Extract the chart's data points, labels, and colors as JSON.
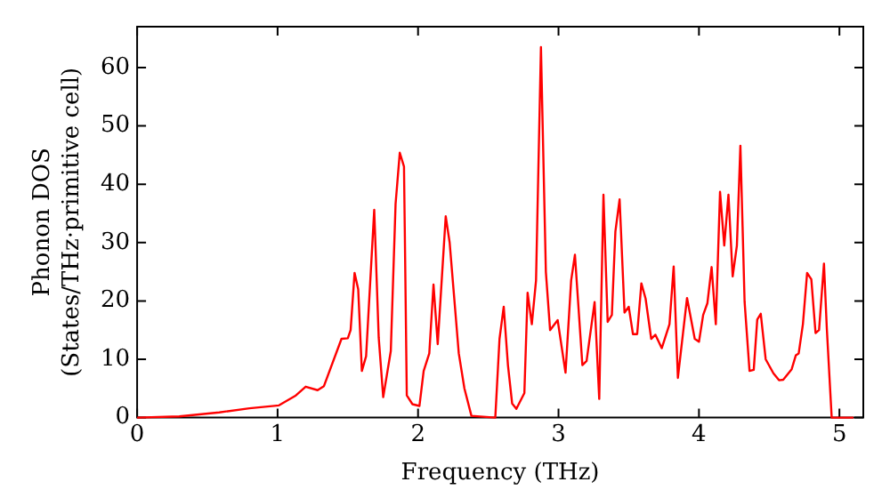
{
  "chart_data": {
    "type": "line",
    "xlabel": "Frequency (THz)",
    "ylabel": "Phonon DOS\n(States/THz·primitive cell)",
    "x": [
      0,
      0.3,
      0.585,
      0.8,
      1.01,
      1.13,
      1.2,
      1.285,
      1.33,
      1.455,
      1.5,
      1.52,
      1.548,
      1.574,
      1.6,
      1.63,
      1.688,
      1.72,
      1.752,
      1.806,
      1.84,
      1.87,
      1.9,
      1.92,
      1.96,
      2.01,
      2.04,
      2.08,
      2.11,
      2.14,
      2.197,
      2.225,
      2.29,
      2.33,
      2.38,
      2.55,
      2.58,
      2.61,
      2.64,
      2.67,
      2.7,
      2.757,
      2.78,
      2.81,
      2.84,
      2.875,
      2.91,
      2.94,
      2.994,
      3.05,
      3.09,
      3.117,
      3.17,
      3.2,
      3.257,
      3.29,
      3.32,
      3.35,
      3.38,
      3.405,
      3.435,
      3.47,
      3.5,
      3.53,
      3.56,
      3.59,
      3.62,
      3.66,
      3.69,
      3.735,
      3.79,
      3.82,
      3.85,
      3.915,
      3.97,
      4.0,
      4.03,
      4.06,
      4.09,
      4.12,
      4.15,
      4.18,
      4.21,
      4.24,
      4.27,
      4.295,
      4.325,
      4.36,
      4.39,
      4.415,
      4.44,
      4.475,
      4.53,
      4.57,
      4.6,
      4.66,
      4.69,
      4.71,
      4.74,
      4.77,
      4.8,
      4.83,
      4.855,
      4.89,
      4.91,
      4.945,
      5.1
    ],
    "series": [
      {
        "color": "#ff0000",
        "values": [
          0,
          0.2,
          0.9,
          1.6,
          2.1,
          3.8,
          5.3,
          4.7,
          5.4,
          13.5,
          13.6,
          15,
          24.8,
          22,
          8,
          10.5,
          35.6,
          13.7,
          3.5,
          11.4,
          36.6,
          45.4,
          43,
          3.8,
          2.3,
          2,
          8,
          11,
          22.8,
          12.6,
          34.5,
          30,
          11,
          5,
          0.3,
          0,
          13.5,
          19,
          9,
          2.4,
          1.5,
          4.2,
          21.4,
          16,
          23.5,
          63.5,
          25,
          15,
          16.7,
          7.7,
          23.5,
          27.9,
          9,
          9.7,
          19.8,
          3.2,
          38.2,
          16.4,
          17.6,
          31.9,
          37.4,
          18,
          19,
          14.3,
          14.3,
          23,
          20.4,
          13.5,
          14.2,
          11.9,
          16,
          25.9,
          6.8,
          20.5,
          13.5,
          13,
          17.6,
          19.6,
          25.8,
          16,
          38.7,
          29.5,
          38.2,
          24.2,
          29.5,
          46.6,
          19.8,
          8,
          8.2,
          16.8,
          17.8,
          10,
          7.6,
          6.4,
          6.5,
          8.3,
          10.7,
          11,
          16,
          24.8,
          23.7,
          14.5,
          15,
          26.4,
          15.4,
          0,
          0
        ]
      }
    ],
    "xlim": [
      0,
      5.17
    ],
    "ylim": [
      0,
      67
    ],
    "xticks": [
      0,
      1,
      2,
      3,
      4,
      5
    ],
    "yticks": [
      0,
      10,
      20,
      30,
      40,
      50,
      60
    ],
    "grid": false,
    "legend": false,
    "marker": "none",
    "line_style": "solid"
  }
}
